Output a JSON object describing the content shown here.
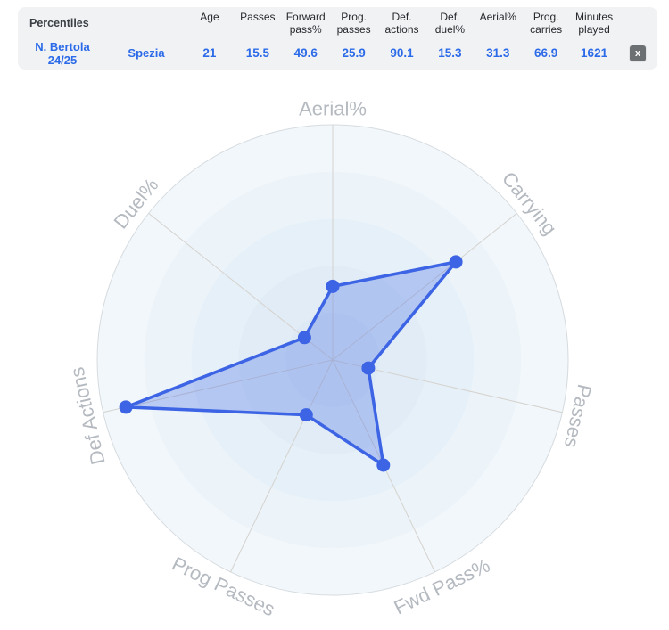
{
  "table": {
    "title": "Percentiles",
    "player": {
      "name": "N. Bertola",
      "season": "24/25",
      "team": "Spezia"
    },
    "columns": [
      {
        "label": "Age",
        "value": "21"
      },
      {
        "label": "Passes",
        "value": "15.5"
      },
      {
        "label": "Forward\npass%",
        "value": "49.6"
      },
      {
        "label": "Prog.\npasses",
        "value": "25.9"
      },
      {
        "label": "Def.\nactions",
        "value": "90.1"
      },
      {
        "label": "Def.\nduel%",
        "value": "15.3"
      },
      {
        "label": "Aerial%",
        "value": "31.3"
      },
      {
        "label": "Prog.\ncarries",
        "value": "66.9"
      },
      {
        "label": "Minutes\nplayed",
        "value": "1621"
      }
    ],
    "close_label": "x"
  },
  "chart_data": {
    "type": "radar",
    "title": "Player percentile radar",
    "axes": [
      "Aerial%",
      "Carrying",
      "Passes",
      "Fwd Pass%",
      "Prog Passes",
      "Def Actions",
      "Duel%"
    ],
    "series": [
      {
        "name": "N. Bertola 24/25",
        "team": "Spezia",
        "values": [
          31.3,
          66.9,
          15.5,
          49.6,
          25.9,
          90.1,
          15.3
        ]
      }
    ],
    "scale_min": 0,
    "scale_max": 100,
    "grid_rings": 5,
    "legend": "none",
    "colors": {
      "series_stroke": "#3c64e4",
      "series_fill": "rgba(67,105,227,0.30)",
      "ring_fills_outer_to_inner": [
        "#f1f7fb",
        "#ecf4fa",
        "#e6f0f8",
        "#e1ecf6",
        "#dde9f4"
      ],
      "axis_line": "#d5d2cd",
      "outer_circle": "#d6dbdf",
      "axis_label": "#b5bac1"
    }
  }
}
